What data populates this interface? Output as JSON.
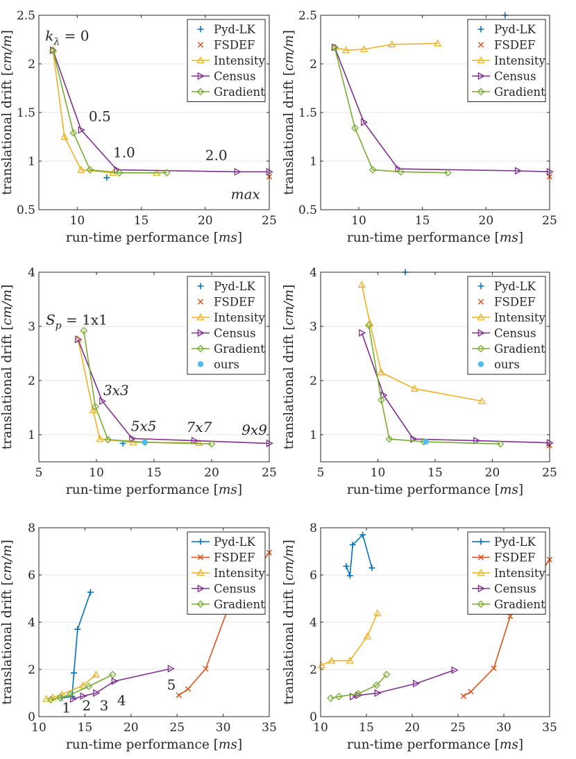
{
  "colors": {
    "pyd": "#0072BD",
    "fsdef": "#D95319",
    "intensity": "#EDB120",
    "census": "#7E2F8E",
    "gradient": "#77AC30",
    "ours": "#4DBEEE",
    "grid": "#e6e6e6",
    "axis": "#262626"
  },
  "chart_data": [
    {
      "type": "line",
      "id": "p1",
      "xlabel_parts": [
        "run-time performance ",
        "[",
        "ms",
        "]"
      ],
      "ylabel_parts": [
        "translational drift ",
        "[",
        "cm/m",
        "]"
      ],
      "xlim": [
        7,
        25
      ],
      "ylim": [
        0.5,
        2.5
      ],
      "xticks": [
        10,
        15,
        20,
        25
      ],
      "yticks": [
        0.5,
        1,
        1.5,
        2,
        2.5
      ],
      "xticklabels": [
        "10",
        "15",
        "20",
        "25"
      ],
      "yticklabels": [
        "0.5",
        "1",
        "1.5",
        "2",
        "2.5"
      ],
      "legend": [
        "Pyd-LK",
        "FSDEF",
        "Intensity",
        "Census",
        "Gradient"
      ],
      "series": [
        {
          "name": "Pyd-LK",
          "key": "pyd",
          "marker": "plus",
          "points": [
            [
              12.3,
              0.83
            ]
          ]
        },
        {
          "name": "FSDEF",
          "key": "fsdef",
          "marker": "x",
          "points": [
            [
              25.0,
              0.84
            ]
          ]
        },
        {
          "name": "Intensity",
          "key": "intensity",
          "marker": "triangle-up",
          "points": [
            [
              8.1,
              2.14
            ],
            [
              9.0,
              1.25
            ],
            [
              10.3,
              0.91
            ],
            [
              12.8,
              0.88
            ],
            [
              16.2,
              0.88
            ]
          ]
        },
        {
          "name": "Census",
          "key": "census",
          "marker": "triangle-right",
          "points": [
            [
              8.1,
              2.14
            ],
            [
              10.3,
              1.32
            ],
            [
              13.1,
              0.91
            ],
            [
              22.5,
              0.89
            ],
            [
              25.0,
              0.89
            ]
          ]
        },
        {
          "name": "Gradient",
          "key": "gradient",
          "marker": "diamond",
          "points": [
            [
              8.1,
              2.14
            ],
            [
              9.7,
              1.29
            ],
            [
              11.0,
              0.91
            ],
            [
              13.3,
              0.88
            ],
            [
              17.0,
              0.88
            ]
          ]
        }
      ],
      "annotations": [
        {
          "x": 7.5,
          "y": 2.24,
          "text": "k",
          "sub": "λ",
          "rest": " = 0",
          "style": "italic"
        },
        {
          "x": 10.9,
          "y": 1.41,
          "text": "0.5"
        },
        {
          "x": 12.8,
          "y": 1.04,
          "text": "1.0"
        },
        {
          "x": 20.0,
          "y": 1.01,
          "text": "2.0"
        },
        {
          "x": 22.0,
          "y": 0.61,
          "text": "max",
          "style": "italic"
        }
      ]
    },
    {
      "type": "line",
      "id": "p2",
      "xlabel_parts": [
        "run-time performance ",
        "[",
        "ms",
        "]"
      ],
      "ylabel_parts": [
        "translational drift ",
        "[",
        "cm/m",
        "]"
      ],
      "xlim": [
        7,
        25
      ],
      "ylim": [
        0.5,
        2.5
      ],
      "xticks": [
        10,
        15,
        20,
        25
      ],
      "yticks": [
        0.5,
        1,
        1.5,
        2,
        2.5
      ],
      "xticklabels": [
        "10",
        "15",
        "20",
        "25"
      ],
      "yticklabels": [
        "0.5",
        "1",
        "1.5",
        "2",
        "2.5"
      ],
      "legend": [
        "Pyd-LK",
        "FSDEF",
        "Intensity",
        "Census",
        "Gradient"
      ],
      "series": [
        {
          "name": "Pyd-LK",
          "key": "pyd",
          "marker": "plus",
          "points": [
            [
              21.5,
              2.5
            ]
          ]
        },
        {
          "name": "FSDEF",
          "key": "fsdef",
          "marker": "x",
          "points": [
            [
              25.0,
              0.84
            ]
          ]
        },
        {
          "name": "Intensity",
          "key": "intensity",
          "marker": "triangle-up",
          "points": [
            [
              8.1,
              2.17
            ],
            [
              9.0,
              2.14
            ],
            [
              10.4,
              2.15
            ],
            [
              12.6,
              2.2
            ],
            [
              16.2,
              2.21
            ]
          ]
        },
        {
          "name": "Census",
          "key": "census",
          "marker": "triangle-right",
          "points": [
            [
              8.1,
              2.17
            ],
            [
              10.4,
              1.4
            ],
            [
              13.1,
              0.92
            ],
            [
              22.5,
              0.9
            ],
            [
              25.0,
              0.89
            ]
          ]
        },
        {
          "name": "Gradient",
          "key": "gradient",
          "marker": "diamond",
          "points": [
            [
              8.1,
              2.17
            ],
            [
              9.7,
              1.34
            ],
            [
              11.1,
              0.91
            ],
            [
              13.3,
              0.89
            ],
            [
              17.0,
              0.88
            ]
          ]
        }
      ],
      "annotations": []
    },
    {
      "type": "line",
      "id": "p3",
      "xlabel_parts": [
        "run-time performance ",
        "[",
        "ms",
        "]"
      ],
      "ylabel_parts": [
        "translational drift ",
        "[",
        "cm/m",
        "]"
      ],
      "xlim": [
        5,
        25
      ],
      "ylim": [
        0.5,
        4
      ],
      "xticks": [
        5,
        10,
        15,
        20,
        25
      ],
      "yticks": [
        1,
        2,
        3,
        4
      ],
      "xticklabels": [
        "5",
        "10",
        "15",
        "20",
        "25"
      ],
      "yticklabels": [
        "1",
        "2",
        "3",
        "4"
      ],
      "legend": [
        "Pyd-LK",
        "FSDEF",
        "Intensity",
        "Census",
        "Gradient",
        "ours"
      ],
      "series": [
        {
          "name": "Pyd-LK",
          "key": "pyd",
          "marker": "plus",
          "points": [
            [
              12.3,
              0.84
            ]
          ]
        },
        {
          "name": "FSDEF",
          "key": "fsdef",
          "marker": "x",
          "points": []
        },
        {
          "name": "Intensity",
          "key": "intensity",
          "marker": "triangle-up",
          "points": [
            [
              8.4,
              2.76
            ],
            [
              9.7,
              1.45
            ],
            [
              10.3,
              0.92
            ],
            [
              13.2,
              0.86
            ],
            [
              18.9,
              0.85
            ]
          ]
        },
        {
          "name": "Census",
          "key": "census",
          "marker": "triangle-right",
          "points": [
            [
              8.4,
              2.76
            ],
            [
              10.5,
              1.62
            ],
            [
              13.1,
              0.93
            ],
            [
              18.5,
              0.89
            ],
            [
              25.0,
              0.84
            ]
          ]
        },
        {
          "name": "Gradient",
          "key": "gradient",
          "marker": "diamond",
          "points": [
            [
              8.9,
              2.92
            ],
            [
              9.9,
              1.52
            ],
            [
              11.0,
              0.91
            ],
            [
              14.2,
              0.86
            ],
            [
              20.0,
              0.83
            ]
          ]
        },
        {
          "name": "ours",
          "key": "ours",
          "marker": "dot",
          "points": [
            [
              14.2,
              0.86
            ]
          ]
        }
      ],
      "annotations": [
        {
          "x": 5.6,
          "y": 3.03,
          "text": "S",
          "sub": "p",
          "rest": " = 1x1",
          "style": "italic"
        },
        {
          "x": 10.6,
          "y": 1.73,
          "text": "3x3",
          "style": "italic"
        },
        {
          "x": 13.0,
          "y": 1.07,
          "text": "5x5",
          "style": "italic"
        },
        {
          "x": 17.8,
          "y": 1.05,
          "text": "7x7",
          "style": "italic"
        },
        {
          "x": 22.6,
          "y": 1.0,
          "text": "9x9",
          "style": "italic"
        }
      ]
    },
    {
      "type": "line",
      "id": "p4",
      "xlabel_parts": [
        "run-time performance ",
        "[",
        "ms",
        "]"
      ],
      "ylabel_parts": [
        "translational drift ",
        "[",
        "cm/m",
        "]"
      ],
      "xlim": [
        5,
        25
      ],
      "ylim": [
        0.5,
        4
      ],
      "xticks": [
        5,
        10,
        15,
        20,
        25
      ],
      "yticks": [
        1,
        2,
        3,
        4
      ],
      "xticklabels": [
        "5",
        "10",
        "15",
        "20",
        "25"
      ],
      "yticklabels": [
        "1",
        "2",
        "3",
        "4"
      ],
      "legend": [
        "Pyd-LK",
        "FSDEF",
        "Intensity",
        "Census",
        "Gradient",
        "ours"
      ],
      "series": [
        {
          "name": "Pyd-LK",
          "key": "pyd",
          "marker": "plus",
          "points": [
            [
              12.4,
              4.0
            ]
          ]
        },
        {
          "name": "FSDEF",
          "key": "fsdef",
          "marker": "x",
          "points": [
            [
              25.0,
              0.8
            ]
          ]
        },
        {
          "name": "Intensity",
          "key": "intensity",
          "marker": "triangle-up",
          "points": [
            [
              8.6,
              3.77
            ],
            [
              9.3,
              3.06
            ],
            [
              10.3,
              2.15
            ],
            [
              13.2,
              1.85
            ],
            [
              19.1,
              1.62
            ]
          ]
        },
        {
          "name": "Census",
          "key": "census",
          "marker": "triangle-right",
          "points": [
            [
              8.6,
              2.88
            ],
            [
              10.5,
              1.73
            ],
            [
              13.1,
              0.92
            ],
            [
              18.6,
              0.89
            ],
            [
              25.0,
              0.85
            ]
          ]
        },
        {
          "name": "Gradient",
          "key": "gradient",
          "marker": "diamond",
          "points": [
            [
              9.2,
              3.02
            ],
            [
              10.3,
              1.64
            ],
            [
              11.0,
              0.92
            ],
            [
              14.0,
              0.87
            ],
            [
              20.7,
              0.83
            ]
          ]
        },
        {
          "name": "ours",
          "key": "ours",
          "marker": "dot",
          "points": [
            [
              14.2,
              0.87
            ]
          ]
        }
      ],
      "annotations": []
    },
    {
      "type": "line",
      "id": "p5",
      "xlabel_parts": [
        "run-time performance ",
        "[",
        "ms",
        "]"
      ],
      "ylabel_parts": [
        "translational drift ",
        "[",
        "cm/m",
        "]"
      ],
      "xlim": [
        10,
        35
      ],
      "ylim": [
        0,
        8
      ],
      "xticks": [
        10,
        15,
        20,
        25,
        30,
        35
      ],
      "yticks": [
        0,
        2,
        4,
        6,
        8
      ],
      "xticklabels": [
        "10",
        "15",
        "20",
        "25",
        "30",
        "35"
      ],
      "yticklabels": [
        "0",
        "2",
        "4",
        "6",
        "8"
      ],
      "legend": [
        "Pyd-LK",
        "FSDEF",
        "Intensity",
        "Census",
        "Gradient"
      ],
      "series": [
        {
          "name": "Pyd-LK",
          "key": "pyd",
          "marker": "plus",
          "points": [
            [
              12.5,
              0.8
            ],
            [
              13.6,
              0.85
            ],
            [
              13.8,
              1.85
            ],
            [
              14.2,
              3.7
            ],
            [
              15.6,
              5.27
            ]
          ]
        },
        {
          "name": "FSDEF",
          "key": "fsdef",
          "marker": "x",
          "points": [
            [
              25.2,
              0.91
            ],
            [
              26.2,
              1.17
            ],
            [
              28.1,
              2.03
            ],
            [
              30.4,
              4.45
            ],
            [
              35.0,
              6.95
            ]
          ]
        },
        {
          "name": "Intensity",
          "key": "intensity",
          "marker": "triangle-up",
          "points": [
            [
              10.8,
              0.75
            ],
            [
              11.5,
              0.81
            ],
            [
              12.5,
              0.94
            ],
            [
              14.8,
              1.32
            ],
            [
              16.2,
              1.78
            ]
          ]
        },
        {
          "name": "Census",
          "key": "census",
          "marker": "triangle-right",
          "points": [
            [
              13.7,
              0.75
            ],
            [
              14.8,
              0.87
            ],
            [
              16.2,
              1.0
            ],
            [
              18.2,
              1.5
            ],
            [
              24.3,
              2.03
            ]
          ]
        },
        {
          "name": "Gradient",
          "key": "gradient",
          "marker": "diamond",
          "points": [
            [
              11.3,
              0.72
            ],
            [
              12.3,
              0.8
            ],
            [
              13.4,
              0.93
            ],
            [
              15.4,
              1.28
            ],
            [
              18.0,
              1.78
            ]
          ]
        }
      ],
      "annotations": [
        {
          "x": 12.5,
          "y": 0.17,
          "text": "1"
        },
        {
          "x": 14.7,
          "y": 0.26,
          "text": "2"
        },
        {
          "x": 16.6,
          "y": 0.26,
          "text": "3"
        },
        {
          "x": 18.5,
          "y": 0.49,
          "text": "4"
        },
        {
          "x": 23.9,
          "y": 1.14,
          "text": "5"
        }
      ]
    },
    {
      "type": "line",
      "id": "p6",
      "xlabel_parts": [
        "run-time performance ",
        "[",
        "ms",
        "]"
      ],
      "ylabel_parts": [
        "translational drift ",
        "[",
        "cm/m",
        "]"
      ],
      "xlim": [
        10,
        35
      ],
      "ylim": [
        0,
        8
      ],
      "xticks": [
        10,
        15,
        20,
        25,
        30,
        35
      ],
      "yticks": [
        0,
        2,
        4,
        6,
        8
      ],
      "xticklabels": [
        "10",
        "15",
        "20",
        "25",
        "30",
        "35"
      ],
      "yticklabels": [
        "0",
        "2",
        "4",
        "6",
        "8"
      ],
      "legend": [
        "Pyd-LK",
        "FSDEF",
        "Intensity",
        "Census",
        "Gradient"
      ],
      "series": [
        {
          "name": "Pyd-LK",
          "key": "pyd",
          "marker": "plus",
          "points": [
            [
              12.8,
              6.37
            ],
            [
              13.2,
              5.97
            ],
            [
              13.5,
              7.28
            ],
            [
              14.6,
              7.7
            ],
            [
              15.6,
              6.3
            ]
          ]
        },
        {
          "name": "FSDEF",
          "key": "fsdef",
          "marker": "x",
          "points": [
            [
              25.6,
              0.87
            ],
            [
              26.4,
              1.06
            ],
            [
              28.9,
              2.05
            ],
            [
              30.7,
              4.25
            ],
            [
              35.0,
              6.65
            ]
          ]
        },
        {
          "name": "Intensity",
          "key": "intensity",
          "marker": "triangle-up",
          "points": [
            [
              10.1,
              2.17
            ],
            [
              11.2,
              2.37
            ],
            [
              13.2,
              2.37
            ],
            [
              15.1,
              3.4
            ],
            [
              16.2,
              4.38
            ]
          ]
        },
        {
          "name": "Census",
          "key": "census",
          "marker": "triangle-right",
          "points": [
            [
              13.5,
              0.85
            ],
            [
              14.1,
              0.9
            ],
            [
              16.2,
              1.0
            ],
            [
              20.4,
              1.4
            ],
            [
              24.6,
              1.97
            ]
          ]
        },
        {
          "name": "Gradient",
          "key": "gradient",
          "marker": "diamond",
          "points": [
            [
              11.1,
              0.78
            ],
            [
              12.0,
              0.85
            ],
            [
              14.1,
              0.97
            ],
            [
              16.1,
              1.33
            ],
            [
              17.2,
              1.78
            ]
          ]
        }
      ],
      "annotations": []
    }
  ]
}
